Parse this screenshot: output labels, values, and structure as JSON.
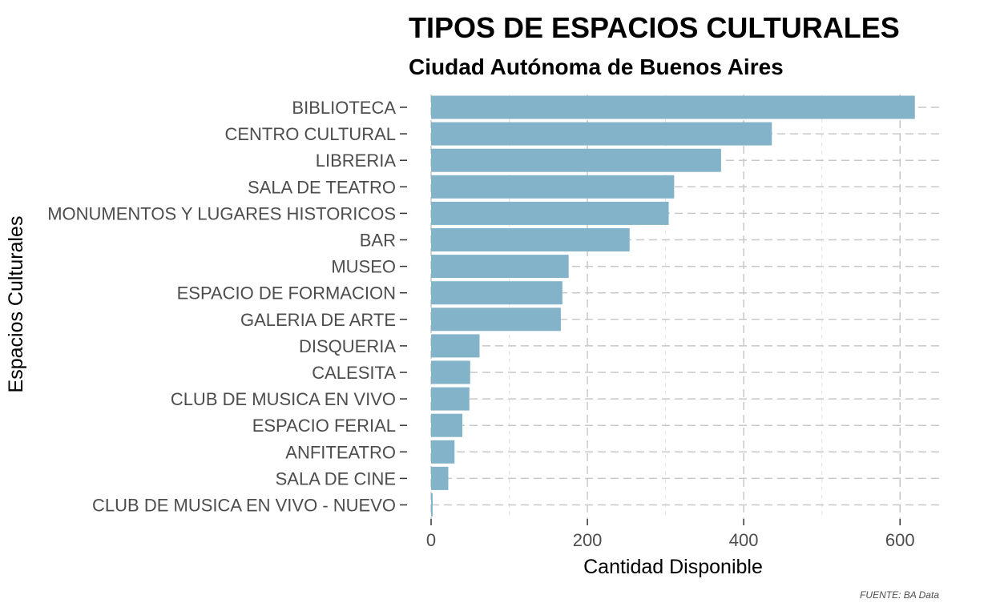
{
  "chart_data": {
    "type": "bar",
    "orientation": "horizontal",
    "title": "TIPOS DE ESPACIOS CULTURALES",
    "subtitle": "Ciudad Autónoma de Buenos Aires",
    "xlabel": "Cantidad Disponible",
    "ylabel": "Espacios Culturales",
    "caption": "FUENTE: BA Data",
    "xlim": [
      0,
      650
    ],
    "x_ticks": [
      0,
      200,
      400,
      600
    ],
    "grid": true,
    "legend": "none",
    "bar_color": "#82b3c9",
    "categories": [
      "BIBLIOTECA",
      "CENTRO CULTURAL",
      "LIBRERIA",
      "SALA DE TEATRO",
      "MONUMENTOS Y LUGARES HISTORICOS",
      "BAR",
      "MUSEO",
      "ESPACIO DE FORMACION",
      "GALERIA DE ARTE",
      "DISQUERIA",
      "CALESITA",
      "CLUB DE MUSICA EN VIVO",
      "ESPACIO FERIAL",
      "ANFITEATRO",
      "SALA DE CINE",
      "CLUB DE MUSICA EN VIVO - NUEVO"
    ],
    "values": [
      619,
      436,
      371,
      311,
      304,
      254,
      176,
      168,
      166,
      62,
      50,
      49,
      40,
      30,
      22,
      2
    ]
  }
}
